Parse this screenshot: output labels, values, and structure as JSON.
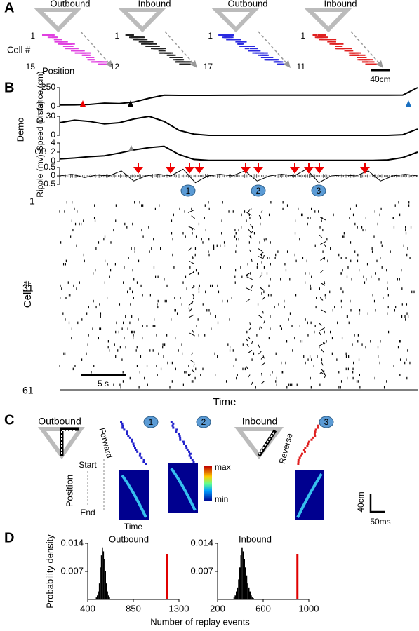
{
  "panel_labels": [
    "A",
    "B",
    "C",
    "D"
  ],
  "panel_a": {
    "groups": [
      {
        "title": "Outbound",
        "first": "1",
        "last": "15",
        "color": "#e040e0"
      },
      {
        "title": "Inbound",
        "first": "1",
        "last": "12",
        "color": "#222222"
      },
      {
        "title": "Outbound",
        "first": "1",
        "last": "17",
        "color": "#2a2ae0"
      },
      {
        "title": "Inbound",
        "first": "1",
        "last": "11",
        "color": "#e02020"
      }
    ],
    "ylabel": "Cell #",
    "xlabel": "Position",
    "scale": "40cm"
  },
  "panel_b": {
    "demo": "Demo",
    "events": [
      "1",
      "2",
      "3"
    ],
    "raster_ylabel": "Cell #",
    "raster_ticks": [
      "1",
      "31",
      "61"
    ],
    "scale": "5 s",
    "xlabel": "Time"
  },
  "panel_c": {
    "outbound": "Outbound",
    "forward": "Forward",
    "inbound": "Inbound",
    "reverse": "Reverse",
    "events": [
      "1",
      "2",
      "3"
    ],
    "position": "Position",
    "start": "Start",
    "end": "End",
    "time": "Time",
    "max": "max",
    "min": "min",
    "scale_y": "40cm",
    "scale_x": "50ms"
  },
  "chart_data": [
    {
      "type": "line",
      "ylabel": "Distance (cm)",
      "ylim": [
        0,
        250
      ],
      "yticks": [
        0,
        250
      ],
      "color": "#000000",
      "values": [
        20,
        22,
        28,
        45,
        40,
        60,
        110,
        150,
        148,
        148,
        148,
        149,
        149,
        150,
        150,
        150,
        150,
        150,
        150,
        150,
        150,
        150,
        150,
        152,
        250
      ]
    },
    {
      "type": "line",
      "ylabel": "Speed (cm/s)",
      "ylim": [
        0,
        30
      ],
      "yticks": [
        0,
        30
      ],
      "color": "#000000",
      "values": [
        20,
        24,
        22,
        18,
        20,
        26,
        30,
        22,
        8,
        2,
        0,
        0,
        0,
        0,
        0,
        0,
        0,
        0,
        0,
        0,
        0,
        0,
        0,
        1,
        10
      ]
    },
    {
      "type": "line",
      "ylabel": "OB",
      "ylim": [
        0,
        4
      ],
      "yticks": [
        0,
        2,
        4
      ],
      "color": "#000000",
      "values": [
        0.5,
        0.7,
        1,
        1.2,
        1.8,
        2.5,
        3,
        3.3,
        1.5,
        0.4,
        0.2,
        0.2,
        0.2,
        0.2,
        0.2,
        0.2,
        0.2,
        0.2,
        0.2,
        0.2,
        0.2,
        0.2,
        0.3,
        0.8,
        2
      ]
    },
    {
      "type": "line",
      "ylabel": "Ripple (mv)",
      "ylim": [
        -0.5,
        0.5
      ],
      "yticks": [
        -0.5,
        0,
        0.5
      ],
      "color": "#000000",
      "values": [
        0,
        0.1,
        -0.1,
        0.05,
        0,
        0.3,
        -0.3,
        0,
        0.1,
        0,
        0.4,
        -0.4,
        0,
        0.1,
        0,
        0.3,
        -0.3,
        0,
        0.1,
        0,
        0.4,
        -0.4,
        0,
        0.05,
        0,
        0.3,
        -0.3,
        0,
        0.1,
        0
      ]
    },
    {
      "type": "histogram",
      "title": "Outbound",
      "ylabel": "Probability density",
      "xlabel": "Number of replay events",
      "xlim": [
        400,
        1300
      ],
      "xticks": [
        400,
        850,
        1300
      ],
      "ylim": [
        0,
        0.014
      ],
      "yticks": [
        0.007,
        0.014
      ],
      "color": "#000000",
      "bins": [
        480,
        490,
        500,
        510,
        520,
        530,
        540,
        550,
        560,
        570,
        580,
        590,
        600,
        610,
        620
      ],
      "values": [
        0.0005,
        0.001,
        0.002,
        0.004,
        0.008,
        0.011,
        0.013,
        0.012,
        0.01,
        0.007,
        0.004,
        0.002,
        0.001,
        0.0005
      ],
      "observed": 1180,
      "observed_color": "#e00000"
    },
    {
      "type": "histogram",
      "title": "Inbound",
      "xlim": [
        200,
        1000
      ],
      "xticks": [
        200,
        600,
        1000
      ],
      "ylim": [
        0,
        0.014
      ],
      "yticks": [
        0.007,
        0.014
      ],
      "color": "#000000",
      "bins": [
        340,
        350,
        360,
        370,
        380,
        390,
        400,
        410,
        420,
        430,
        440,
        450,
        460,
        470,
        480,
        490,
        500,
        510,
        520
      ],
      "values": [
        0.0005,
        0.001,
        0.002,
        0.003,
        0.005,
        0.008,
        0.011,
        0.013,
        0.012,
        0.01,
        0.008,
        0.006,
        0.004,
        0.003,
        0.002,
        0.001,
        0.0005,
        0.0003
      ],
      "observed": 900,
      "observed_color": "#e00000"
    }
  ]
}
